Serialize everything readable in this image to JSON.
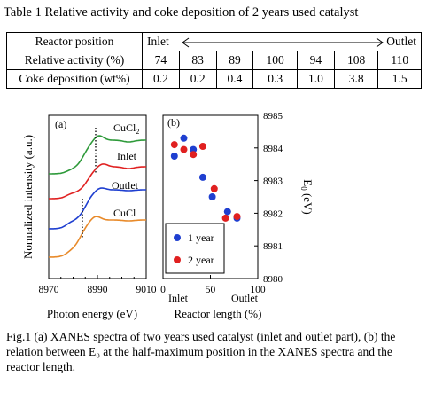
{
  "table": {
    "caption": "Table 1 Relative activity and coke deposition of 2 years used catalyst",
    "header_label": "Reactor position",
    "inlet": "Inlet",
    "outlet": "Outlet",
    "rows": [
      {
        "label": "Relative activity (%)",
        "values": [
          "74",
          "83",
          "89",
          "100",
          "94",
          "108",
          "110"
        ]
      },
      {
        "label": "Coke deposition (wt%)",
        "values": [
          "0.2",
          "0.2",
          "0.4",
          "0.3",
          "1.0",
          "3.8",
          "1.5"
        ]
      }
    ]
  },
  "chart_data": [
    {
      "type": "line",
      "panel_label": "(a)",
      "xlabel": "Photon energy (eV)",
      "ylabel": "Normalized intensity (a.u.)",
      "xlim": [
        8970,
        9010
      ],
      "x_ticks": [
        "8970",
        "8990",
        "9010"
      ],
      "series": [
        {
          "name": "CuCl2",
          "color": "#2e9a3a"
        },
        {
          "name": "Inlet",
          "color": "#e02020"
        },
        {
          "name": "Outlet",
          "color": "#1f3fd0"
        },
        {
          "name": "CuCl",
          "color": "#e88a2a"
        }
      ],
      "annotation": "dotted lines mark half-maximum positions"
    },
    {
      "type": "scatter",
      "panel_label": "(b)",
      "xlabel": "Reactor length (%)",
      "ylabel": "E0 (eV)",
      "ylabel_main": "E",
      "ylabel_sub": "0",
      "ylabel_unit": " (eV)",
      "xlim": [
        0,
        100
      ],
      "ylim": [
        8980,
        8985
      ],
      "x_ticks": [
        "0",
        "50",
        "100"
      ],
      "y_ticks": [
        "8980",
        "8981",
        "8982",
        "8983",
        "8984",
        "8985"
      ],
      "x_annotations": [
        "Inlet",
        "Outlet"
      ],
      "series": [
        {
          "name": "1 year",
          "color": "#1f3fd0",
          "points": [
            [
              12,
              8983.75
            ],
            [
              22,
              8984.3
            ],
            [
              32,
              8983.95
            ],
            [
              42,
              8983.1
            ],
            [
              52,
              8982.5
            ],
            [
              68,
              8982.05
            ],
            [
              78,
              8981.85
            ]
          ]
        },
        {
          "name": "2 year",
          "color": "#e02020",
          "points": [
            [
              12,
              8984.1
            ],
            [
              22,
              8983.95
            ],
            [
              32,
              8983.8
            ],
            [
              42,
              8984.05
            ],
            [
              54,
              8982.75
            ],
            [
              66,
              8981.85
            ],
            [
              78,
              8981.9
            ]
          ]
        }
      ]
    }
  ],
  "caption": "Fig.1 (a) XANES spectra of two years used catalyst (inlet and outlet part), (b) the relation between E₀ at the half-maximum position in the XANES spectra and the reactor length."
}
